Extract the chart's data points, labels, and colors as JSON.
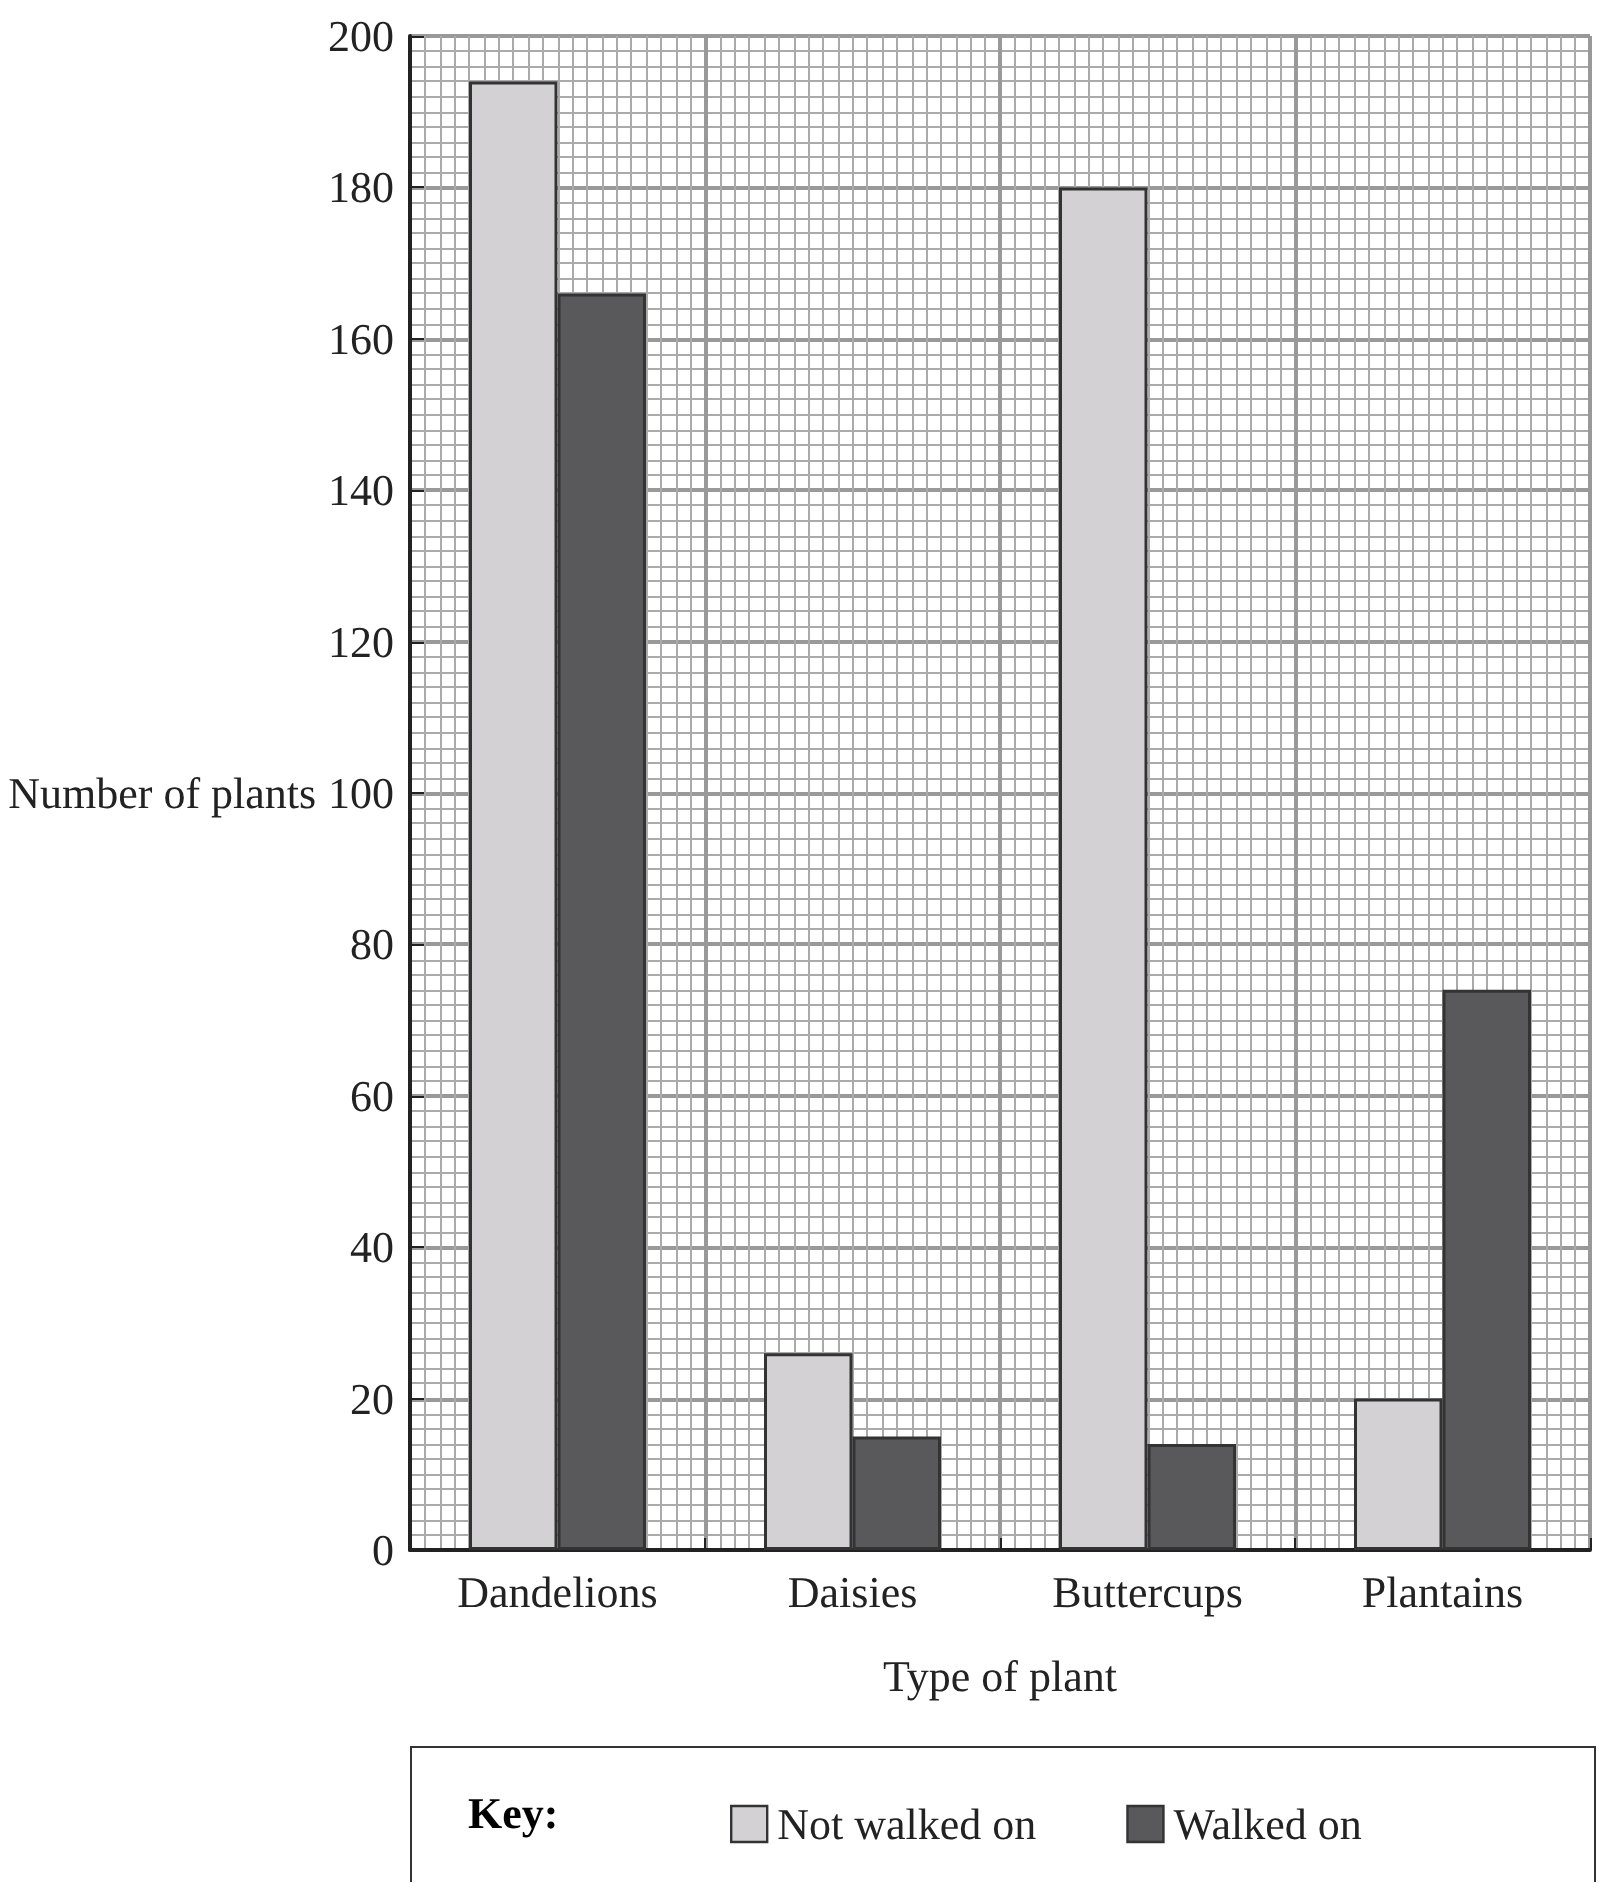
{
  "chart_data": {
    "type": "bar",
    "xlabel": "Type of plant",
    "ylabel": "Number of plants",
    "legend_title": "Key:",
    "categories": [
      "Dandelions",
      "Daisies",
      "Buttercups",
      "Plantains"
    ],
    "series": [
      {
        "name": "Not walked on",
        "color": "#d3d1d4",
        "values": [
          194,
          26,
          180,
          20
        ]
      },
      {
        "name": "Walked on",
        "color": "#59585a",
        "values": [
          166,
          15,
          14,
          74
        ]
      }
    ],
    "ylim": [
      0,
      200
    ],
    "yticks": [
      0,
      20,
      40,
      60,
      80,
      100,
      120,
      140,
      160,
      180,
      200
    ],
    "grid": true,
    "legend": "bottom"
  }
}
